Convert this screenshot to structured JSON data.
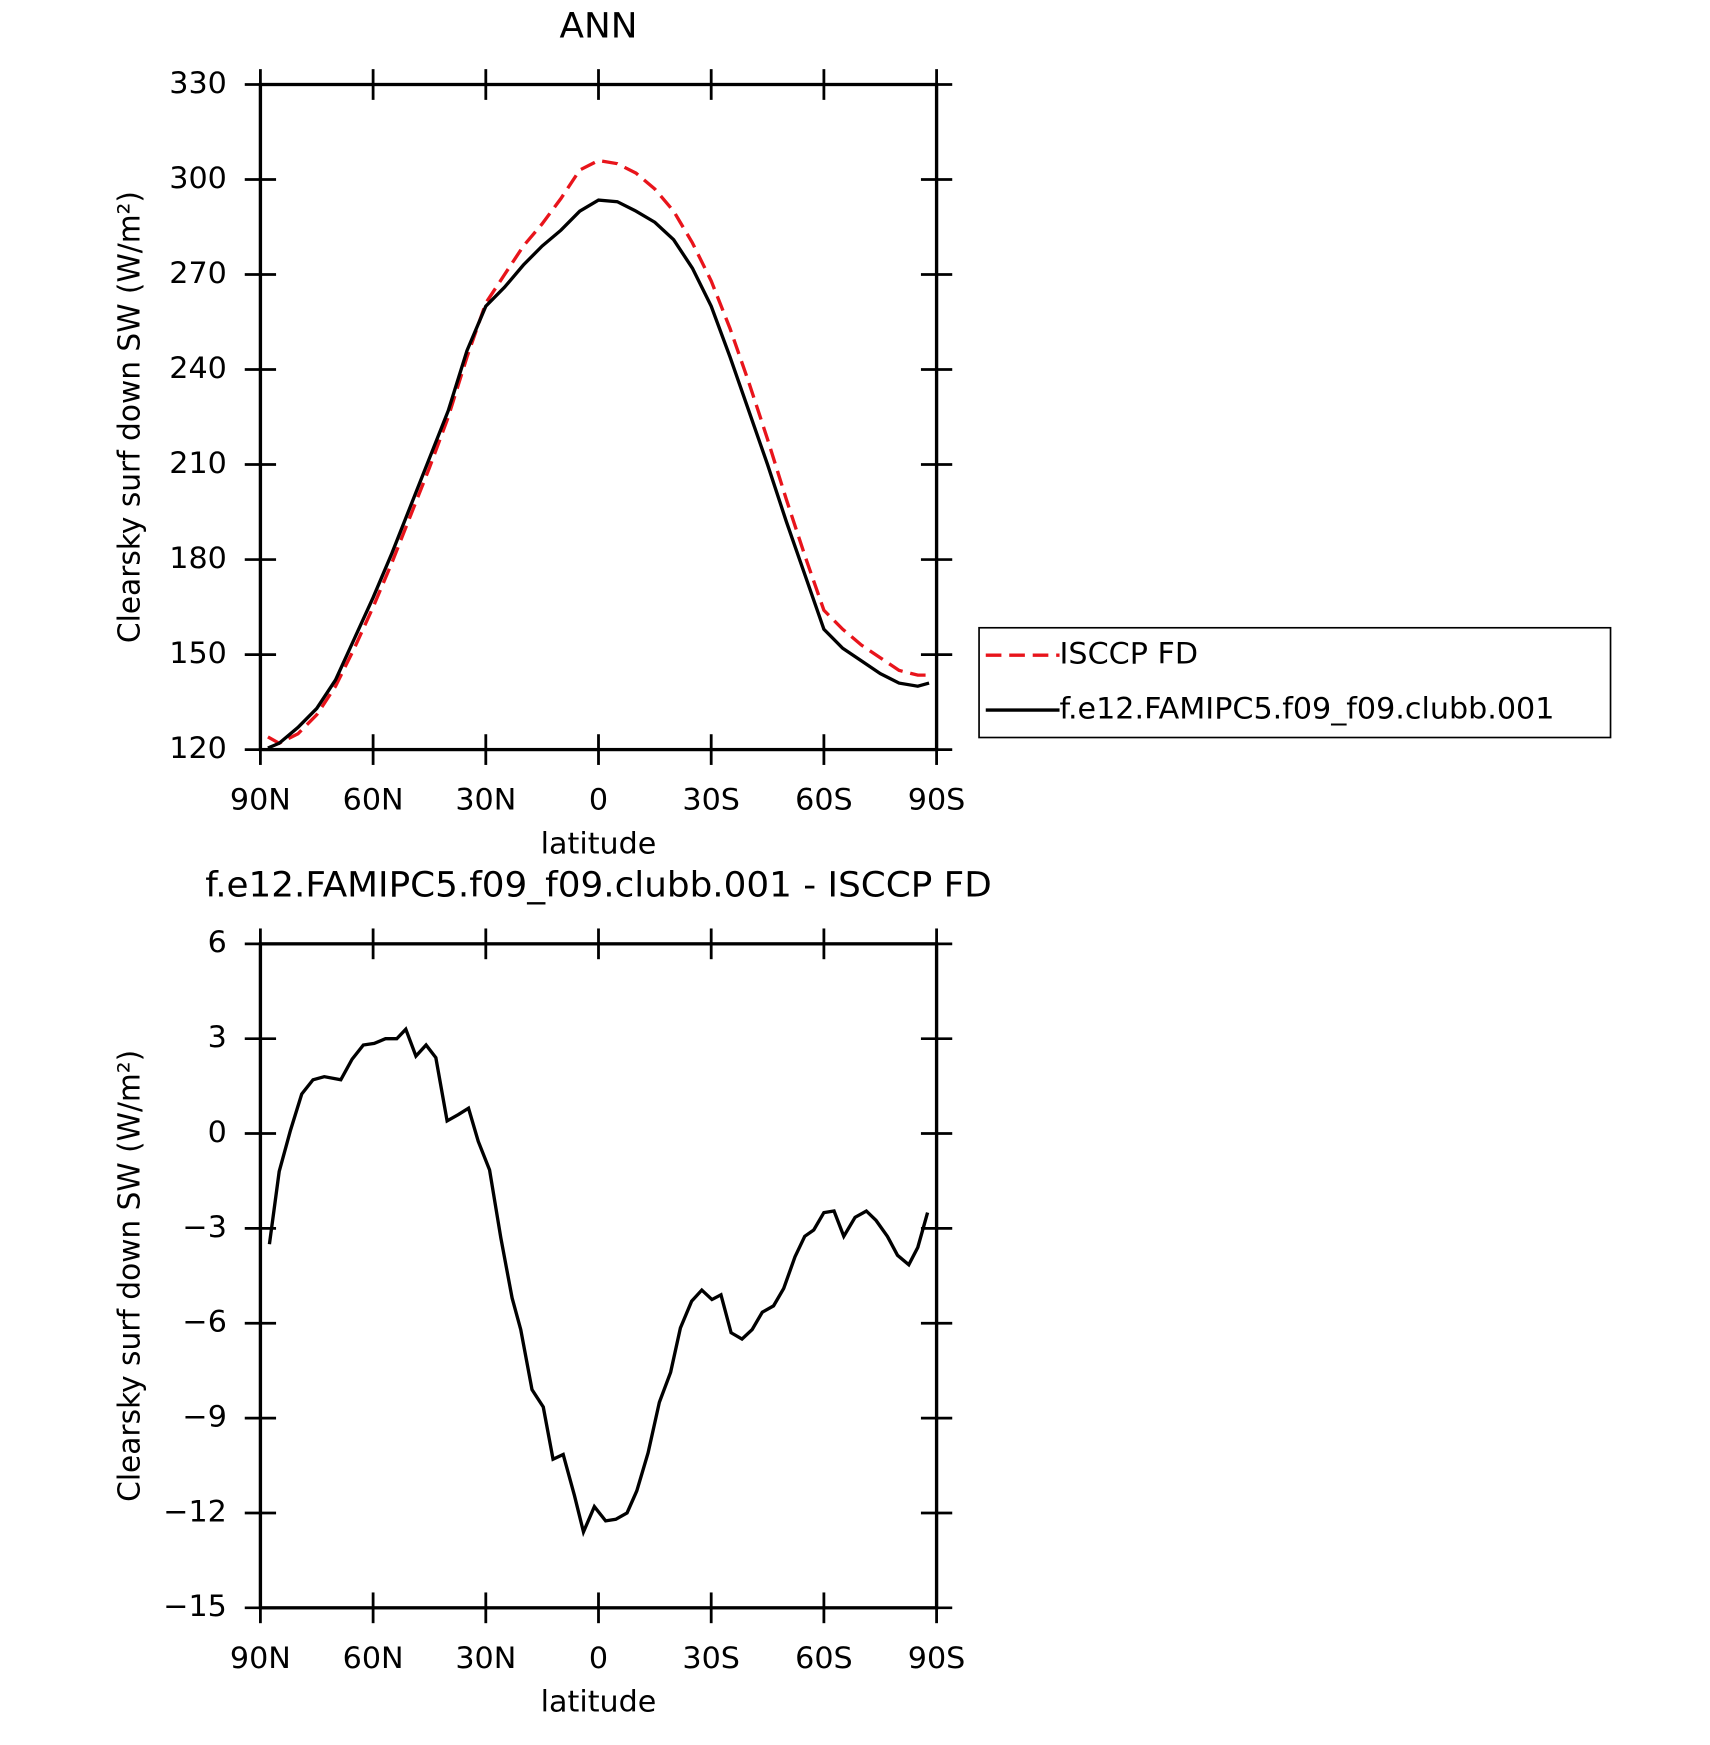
{
  "chart_data": [
    {
      "type": "line",
      "title": "ANN",
      "xlabel": "latitude",
      "ylabel": "Clearsky surf down SW (W/m²)",
      "x": [
        88,
        85,
        80,
        75,
        70,
        65,
        60,
        55,
        50,
        45,
        40,
        35,
        30,
        25,
        20,
        15,
        10,
        5,
        0,
        -5,
        -10,
        -15,
        -20,
        -25,
        -30,
        -35,
        -40,
        -45,
        -50,
        -55,
        -60,
        -65,
        -70,
        -75,
        -80,
        -85,
        -88
      ],
      "series": [
        {
          "name": "ISCCP FD",
          "color": "#e8141b",
          "dashed": true,
          "values": [
            124,
            122,
            125,
            131,
            140,
            152,
            165,
            179,
            194,
            209,
            225,
            244,
            261,
            270,
            279,
            286,
            294,
            303,
            306,
            305,
            302,
            297,
            290,
            280,
            268,
            253,
            236,
            218,
            199,
            181,
            164,
            158,
            153,
            149,
            145,
            143.5,
            143.5
          ]
        },
        {
          "name": "f.e12.FAMIPC5.f09_f09.clubb.001",
          "color": "#000000",
          "dashed": false,
          "values": [
            120.5,
            122,
            127,
            133,
            142,
            155,
            168,
            182,
            197,
            212,
            227,
            246,
            260,
            266,
            273,
            279,
            284,
            290,
            293.5,
            293,
            290,
            286.5,
            281,
            272,
            260,
            244,
            227,
            210,
            192,
            175,
            158,
            152,
            148,
            144,
            141,
            140,
            141
          ]
        }
      ],
      "xlim": [
        90,
        -90
      ],
      "xticks": [
        {
          "value": 90,
          "label": "90N"
        },
        {
          "value": 60,
          "label": "60N"
        },
        {
          "value": 30,
          "label": "30N"
        },
        0,
        {
          "value": -30,
          "label": "30S"
        },
        {
          "value": -60,
          "label": "60S"
        },
        {
          "value": -90,
          "label": "90S"
        }
      ],
      "ylim": [
        120,
        330
      ],
      "yticks": [
        120,
        150,
        180,
        210,
        240,
        270,
        300,
        330
      ],
      "legend": "right"
    },
    {
      "type": "line",
      "title": "f.e12.FAMIPC5.f09_f09.clubb.001 - ISCCP FD",
      "xlabel": "latitude",
      "ylabel": "Clearsky surf down SW (W/m²)",
      "x": [
        87.6,
        85,
        82,
        79,
        76,
        73,
        68.6,
        65.6,
        62.6,
        59.7,
        56.7,
        53.7,
        51.3,
        48.6,
        45.9,
        43.3,
        40.3,
        37.3,
        34.6,
        32,
        29,
        26,
        23,
        20.7,
        17.7,
        14.7,
        12.1,
        9.4,
        6.4,
        4,
        1.1,
        -1.9,
        -4.6,
        -7.6,
        -10.2,
        -13.2,
        -16.2,
        -19.2,
        -21.8,
        -24.8,
        -27.5,
        -30.2,
        -32.6,
        -35.3,
        -38.2,
        -40.9,
        -43.6,
        -46.6,
        -49.3,
        -52.3,
        -54.9,
        -57.3,
        -60,
        -62.7,
        -65.3,
        -68.3,
        -71.3,
        -73.9,
        -76.9,
        -79.6,
        -82.6,
        -85,
        -87.6
      ],
      "series": [
        {
          "name": "f.e12.FAMIPC5.f09_f09.clubb.001 - ISCCP FD",
          "color": "#000000",
          "dashed": false,
          "values": [
            -3.5,
            -1.2,
            0.1,
            1.25,
            1.7,
            1.8,
            1.7,
            2.35,
            2.8,
            2.85,
            3.0,
            3.0,
            3.3,
            2.45,
            2.8,
            2.4,
            0.4,
            0.6,
            0.8,
            -0.25,
            -1.15,
            -3.3,
            -5.2,
            -6.2,
            -8.1,
            -8.65,
            -10.3,
            -10.15,
            -11.45,
            -12.6,
            -11.8,
            -12.25,
            -12.2,
            -12,
            -11.3,
            -10.1,
            -8.5,
            -7.55,
            -6.15,
            -5.3,
            -4.95,
            -5.25,
            -5.1,
            -6.3,
            -6.5,
            -6.2,
            -5.65,
            -5.45,
            -4.9,
            -3.9,
            -3.25,
            -3.05,
            -2.5,
            -2.45,
            -3.25,
            -2.65,
            -2.45,
            -2.75,
            -3.25,
            -3.85,
            -4.15,
            -3.6,
            -2.5
          ]
        }
      ],
      "xlim": [
        90,
        -90
      ],
      "xticks": [
        {
          "value": 90,
          "label": "90N"
        },
        {
          "value": 60,
          "label": "60N"
        },
        {
          "value": 30,
          "label": "30N"
        },
        0,
        {
          "value": -30,
          "label": "30S"
        },
        {
          "value": -60,
          "label": "60S"
        },
        {
          "value": -90,
          "label": "90S"
        }
      ],
      "ylim": [
        -15,
        6
      ],
      "yticks": [
        {
          "value": -15,
          "label": "−15"
        },
        {
          "value": -12,
          "label": "−12"
        },
        {
          "value": -9,
          "label": "−9"
        },
        {
          "value": -6,
          "label": "−6"
        },
        {
          "value": -3,
          "label": "−3"
        },
        0,
        3,
        6
      ]
    }
  ]
}
